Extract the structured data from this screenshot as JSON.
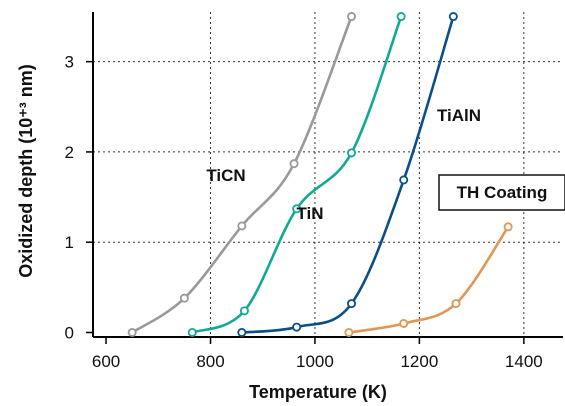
{
  "chart_data": {
    "type": "line",
    "title": "",
    "xlabel": "Temperature (K)",
    "ylabel": "Oxidized depth (10⁺³ nm)",
    "xlim": [
      575,
      1475
    ],
    "ylim": [
      -0.05,
      3.55
    ],
    "xticks": [
      "600",
      "800",
      "1000",
      "1200",
      "1400"
    ],
    "xtick_values": [
      600,
      800,
      1000,
      1200,
      1400
    ],
    "yticks": [
      "0",
      "1",
      "2",
      "3"
    ],
    "ytick_values": [
      0,
      1,
      2,
      3
    ],
    "grid": true,
    "series": [
      {
        "name": "TiCN",
        "color": "#999999",
        "x": [
          650,
          750,
          860,
          960,
          1070
        ],
        "y": [
          0.0,
          0.38,
          1.18,
          1.87,
          3.5
        ]
      },
      {
        "name": "TiN",
        "color": "#12a896",
        "x": [
          765,
          865,
          965,
          1070,
          1165
        ],
        "y": [
          0.0,
          0.24,
          1.37,
          1.99,
          3.5
        ]
      },
      {
        "name": "TiAlN",
        "color": "#0a4f86",
        "x": [
          860,
          965,
          1070,
          1170,
          1265
        ],
        "y": [
          0.0,
          0.06,
          0.32,
          1.69,
          3.5
        ]
      },
      {
        "name": "TH Coating",
        "color": "#e09654",
        "x": [
          1065,
          1170,
          1270,
          1370
        ],
        "y": [
          0.0,
          0.1,
          0.32,
          1.17
        ]
      }
    ]
  }
}
